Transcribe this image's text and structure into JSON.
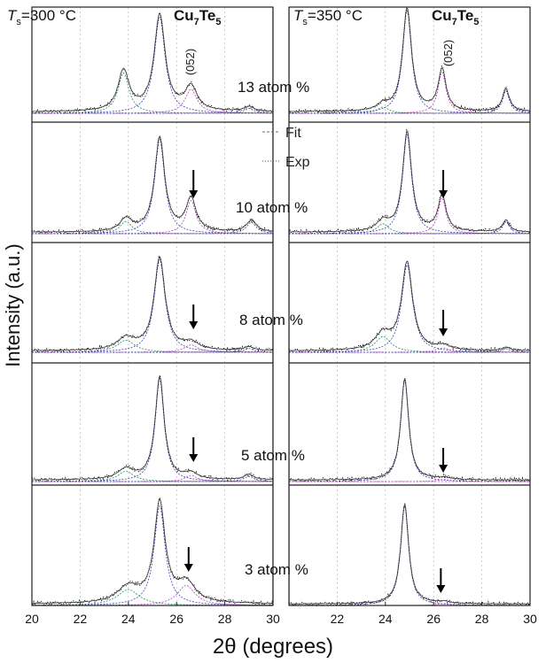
{
  "chart_data": {
    "type": "line",
    "xlabel_main": "2",
    "xlabel_theta": "θ",
    "xlabel_rest": " (degrees)",
    "ylabel": "Intensity (a.u.)",
    "xlim": [
      20,
      30
    ],
    "xticks": [
      "20",
      "22",
      "24",
      "26",
      "28",
      "30",
      "22",
      "24",
      "26",
      "28",
      "30"
    ],
    "legend": [
      "Fit",
      "Exp"
    ],
    "colors": {
      "exp": "#111111",
      "fit": "#333333",
      "peak_main": "#4040c0",
      "peak_052": "#c03cc0",
      "peak_side": "#2a8a6a",
      "baseline": "#c03cc0",
      "grid": "#b8b8b8"
    },
    "columns": [
      {
        "ts_symbol": "T",
        "ts_sub": "s",
        "ts_value": "=300 °C",
        "compound": "Cu",
        "compound_sub1": "7",
        "compound_mid": "Te",
        "compound_sub2": "5"
      },
      {
        "ts_symbol": "T",
        "ts_sub": "s",
        "ts_value": "=350 °C",
        "compound": "Cu",
        "compound_sub1": "7",
        "compound_mid": "Te",
        "compound_sub2": "5"
      }
    ],
    "peak_label": "(052)",
    "concentrations": [
      "13 atom %",
      "10 atom %",
      "8 atom %",
      "5 atom %",
      "3 atom %"
    ],
    "series": [
      {
        "name": "300 °C 13 atom %",
        "peaks": [
          {
            "x": 23.8,
            "h": 0.42,
            "w": 0.55
          },
          {
            "x": 25.3,
            "h": 1.0,
            "w": 0.55
          },
          {
            "x": 26.6,
            "h": 0.25,
            "w": 0.6
          },
          {
            "x": 29.0,
            "h": 0.05,
            "w": 0.5
          }
        ]
      },
      {
        "name": "300 °C 10 atom %",
        "peaks": [
          {
            "x": 23.9,
            "h": 0.13,
            "w": 0.6
          },
          {
            "x": 25.3,
            "h": 1.0,
            "w": 0.5
          },
          {
            "x": 26.6,
            "h": 0.35,
            "w": 0.5
          },
          {
            "x": 29.1,
            "h": 0.12,
            "w": 0.5
          }
        ]
      },
      {
        "name": "300 °C 8 atom %",
        "peaks": [
          {
            "x": 23.9,
            "h": 0.13,
            "w": 0.9
          },
          {
            "x": 25.3,
            "h": 1.0,
            "w": 0.55
          },
          {
            "x": 26.6,
            "h": 0.08,
            "w": 0.7
          },
          {
            "x": 29.0,
            "h": 0.04,
            "w": 0.5
          }
        ]
      },
      {
        "name": "300 °C 5 atom %",
        "peaks": [
          {
            "x": 23.9,
            "h": 0.1,
            "w": 0.8
          },
          {
            "x": 25.3,
            "h": 1.0,
            "w": 0.45
          },
          {
            "x": 26.6,
            "h": 0.06,
            "w": 0.6
          },
          {
            "x": 29.0,
            "h": 0.05,
            "w": 0.5
          }
        ]
      },
      {
        "name": "300 °C 3 atom %",
        "peaks": [
          {
            "x": 24.0,
            "h": 0.16,
            "w": 1.1
          },
          {
            "x": 25.3,
            "h": 1.0,
            "w": 0.55
          },
          {
            "x": 26.4,
            "h": 0.2,
            "w": 0.9
          }
        ]
      },
      {
        "name": "350 °C 13 atom %",
        "peaks": [
          {
            "x": 23.9,
            "h": 0.06,
            "w": 0.6
          },
          {
            "x": 24.9,
            "h": 1.0,
            "w": 0.45
          },
          {
            "x": 26.35,
            "h": 0.4,
            "w": 0.4
          },
          {
            "x": 29.0,
            "h": 0.22,
            "w": 0.35
          }
        ]
      },
      {
        "name": "350 °C 10 atom %",
        "peaks": [
          {
            "x": 23.9,
            "h": 0.1,
            "w": 0.6
          },
          {
            "x": 24.9,
            "h": 1.0,
            "w": 0.45
          },
          {
            "x": 26.35,
            "h": 0.36,
            "w": 0.4
          },
          {
            "x": 29.0,
            "h": 0.12,
            "w": 0.35
          }
        ]
      },
      {
        "name": "350 °C 8 atom %",
        "peaks": [
          {
            "x": 23.9,
            "h": 0.18,
            "w": 0.8
          },
          {
            "x": 24.9,
            "h": 1.0,
            "w": 0.55
          },
          {
            "x": 26.4,
            "h": 0.05,
            "w": 0.6
          },
          {
            "x": 29.0,
            "h": 0.04,
            "w": 0.4
          }
        ]
      },
      {
        "name": "350 °C 5 atom %",
        "peaks": [
          {
            "x": 24.8,
            "h": 1.0,
            "w": 0.4
          },
          {
            "x": 26.4,
            "h": 0.02,
            "w": 0.6
          }
        ]
      },
      {
        "name": "350 °C 3 atom %",
        "peaks": [
          {
            "x": 24.8,
            "h": 1.0,
            "w": 0.4
          },
          {
            "x": 26.4,
            "h": 0.02,
            "w": 0.6
          }
        ]
      }
    ]
  }
}
